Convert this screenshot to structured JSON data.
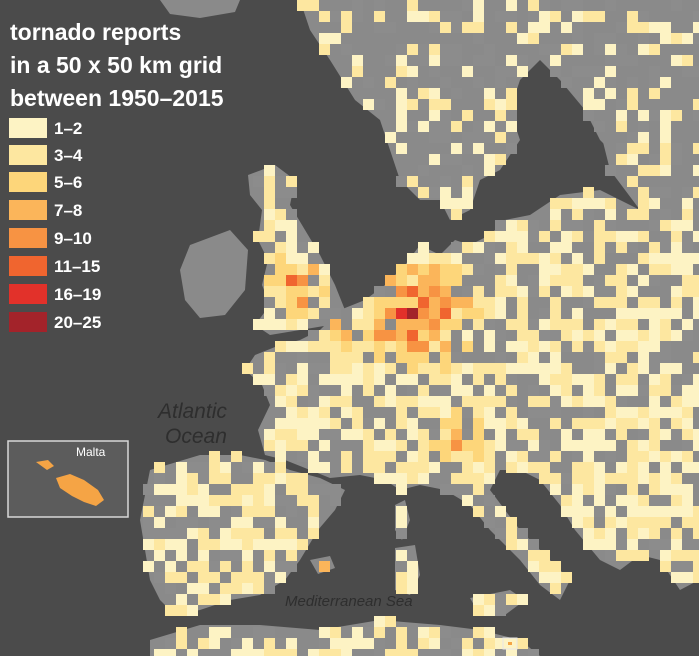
{
  "title": {
    "lines": [
      "tornado reports",
      "in a 50 x 50 km grid",
      "between 1950–2015"
    ]
  },
  "legend": {
    "items": [
      {
        "label": "1–2",
        "color": "#fdf3c4"
      },
      {
        "label": "3–4",
        "color": "#fde7a0"
      },
      {
        "label": "5–6",
        "color": "#fdd67a"
      },
      {
        "label": "7–8",
        "color": "#fbb55a"
      },
      {
        "label": "9–10",
        "color": "#f79343"
      },
      {
        "label": "11–15",
        "color": "#f0652f"
      },
      {
        "label": "16–19",
        "color": "#e2312a"
      },
      {
        "label": "20–25",
        "color": "#a3232a"
      }
    ]
  },
  "no_report_color": "#8c8c8c",
  "labels": {
    "atlantic_line1": "Atlantic",
    "atlantic_line2": "Ocean",
    "mediterranean": "Mediterranean Sea"
  },
  "inset": {
    "label": "Malta"
  }
}
